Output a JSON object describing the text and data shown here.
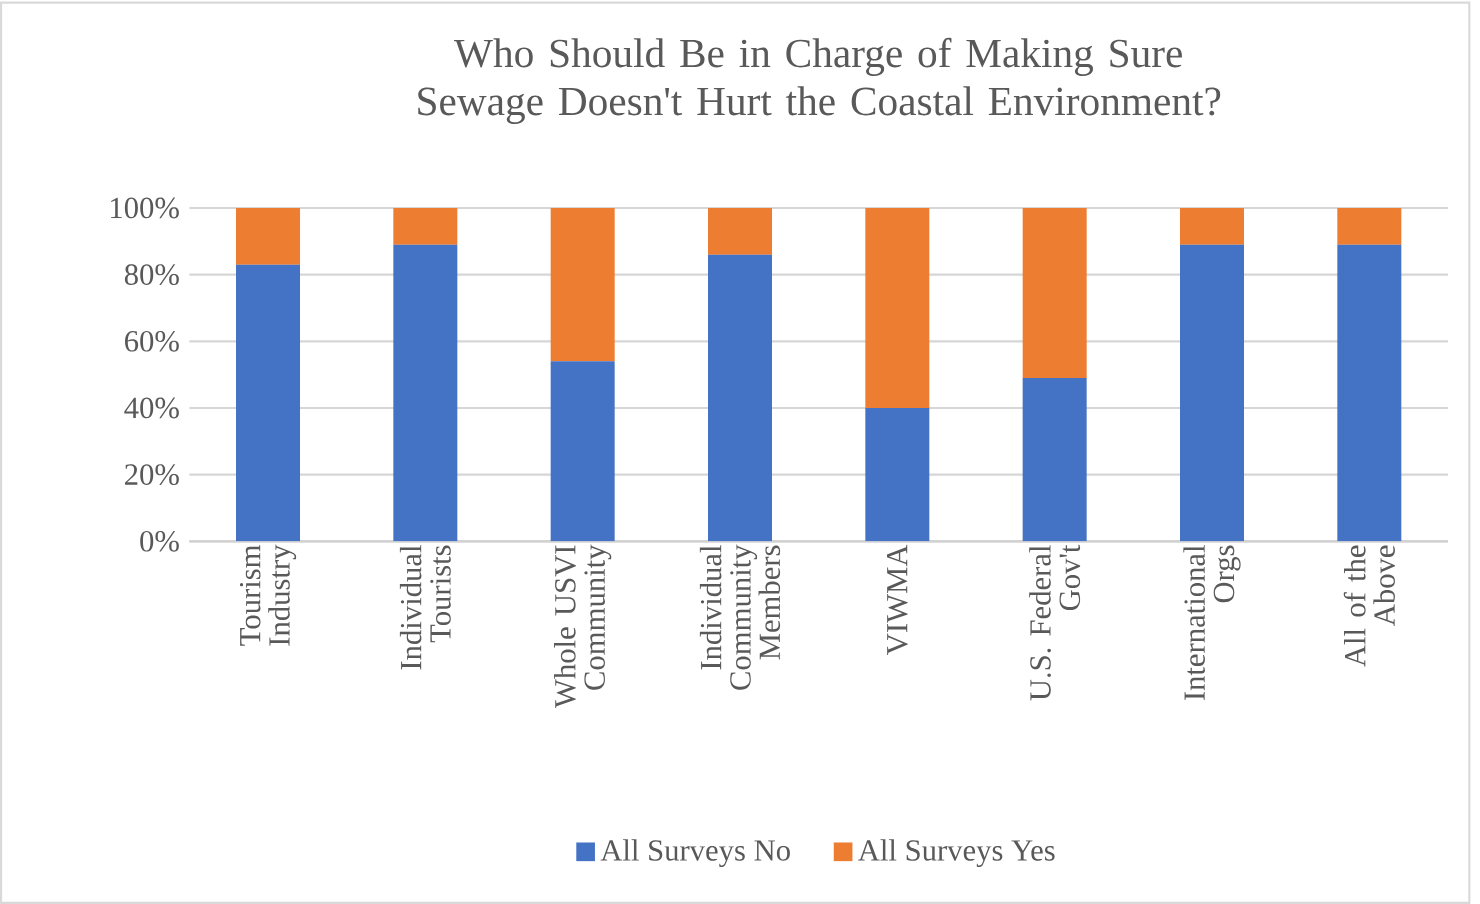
{
  "chart_data": {
    "type": "bar",
    "stacked": true,
    "title": "Who Should Be in Charge of Making Sure Sewage Doesn't Hurt the Coastal Environment?",
    "categories": [
      "Tourism Industry",
      "Individual Tourists",
      "Whole USVI Community",
      "Individual Community Members",
      "VIWMA",
      "U.S. Federal Gov't",
      "International Orgs",
      "All of the Above"
    ],
    "series": [
      {
        "name": "All Surveys No",
        "color": "#4472c4",
        "values": [
          83,
          89,
          54,
          86,
          40,
          49,
          89,
          89
        ]
      },
      {
        "name": "All Surveys Yes",
        "color": "#ed7d31",
        "values": [
          17,
          11,
          46,
          14,
          60,
          51,
          11,
          11
        ]
      }
    ],
    "ylim": [
      0,
      100
    ],
    "yticks": [
      {
        "value": 0,
        "label": "0%"
      },
      {
        "value": 20,
        "label": "20%"
      },
      {
        "value": 40,
        "label": "40%"
      },
      {
        "value": 60,
        "label": "60%"
      },
      {
        "value": 80,
        "label": "80%"
      },
      {
        "value": 100,
        "label": "100%"
      }
    ],
    "grid": "y",
    "legend": "bottom"
  }
}
